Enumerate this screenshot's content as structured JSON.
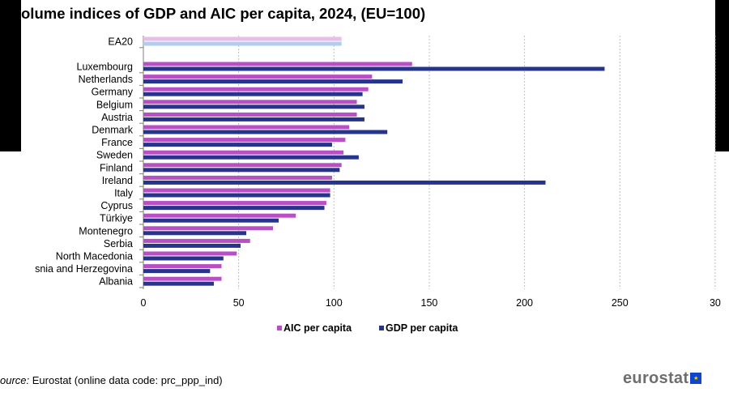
{
  "title": "olume indices of GDP and AIC per capita, 2024, (EU=100)",
  "source": {
    "label": "ource:",
    "text": " Eurostat (online data code: prc_ppp_ind)"
  },
  "brand": {
    "name": "eurostat",
    "flag_icon": "eu-flag-icon"
  },
  "colors": {
    "aic": "#b84fc4",
    "gdp": "#27348b",
    "aic_aggregate": "#e9bdea",
    "gdp_aggregate": "#b3cdef",
    "grid": "#bfbfbf"
  },
  "chart_data": {
    "type": "bar",
    "orientation": "horizontal",
    "title": "olume indices of GDP and AIC per capita, 2024, (EU=100)",
    "categories": [
      "EA20",
      "Luxembourg",
      "Netherlands",
      "Germany",
      "Belgium",
      "Austria",
      "Denmark",
      "France",
      "Sweden",
      "Finland",
      "Ireland",
      "Italy",
      "Cyprus",
      "Türkiye",
      "Montenegro",
      "Serbia",
      "North Macedonia",
      "snia and Herzegovina",
      "Albania"
    ],
    "series": [
      {
        "name": "AIC per capita",
        "values": [
          104,
          141,
          120,
          118,
          112,
          112,
          108,
          106,
          105,
          104,
          99,
          98,
          96,
          80,
          68,
          56,
          49,
          41,
          41
        ]
      },
      {
        "name": "GDP per capita",
        "values": [
          104,
          242,
          136,
          115,
          116,
          116,
          128,
          99,
          113,
          103,
          211,
          98,
          95,
          71,
          54,
          51,
          42,
          35,
          37
        ]
      }
    ],
    "xticks": [
      "0",
      "50",
      "100",
      "150",
      "200",
      "250",
      "30"
    ],
    "xlim": [
      0,
      300
    ],
    "grid": true,
    "gridlines": "vertical-dotted",
    "legend_position": "bottom-center"
  }
}
